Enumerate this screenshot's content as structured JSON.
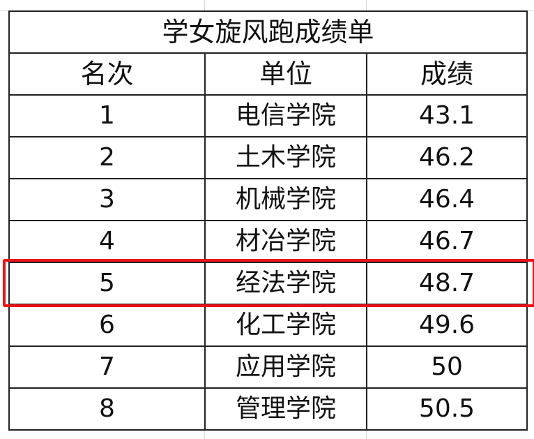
{
  "title": "学女旋风跑成绩单",
  "columns": [
    "名次",
    "单位",
    "成绩"
  ],
  "rows": [
    {
      "rank": "1",
      "unit": "电信学院",
      "score": "43.1"
    },
    {
      "rank": "2",
      "unit": "土木学院",
      "score": "46.2"
    },
    {
      "rank": "3",
      "unit": "机械学院",
      "score": "46.4"
    },
    {
      "rank": "4",
      "unit": "材冶学院",
      "score": "46.7"
    },
    {
      "rank": "5",
      "unit": "经法学院",
      "score": "48.7"
    },
    {
      "rank": "6",
      "unit": "化工学院",
      "score": "49.6"
    },
    {
      "rank": "7",
      "unit": "应用学院",
      "score": "50"
    },
    {
      "rank": "8",
      "unit": "管理学院",
      "score": "50.5"
    }
  ],
  "highlighted_row": "5",
  "colors": {
    "highlight": "#e8141a",
    "border": "#222222",
    "gridline": "#d9d9d9"
  }
}
